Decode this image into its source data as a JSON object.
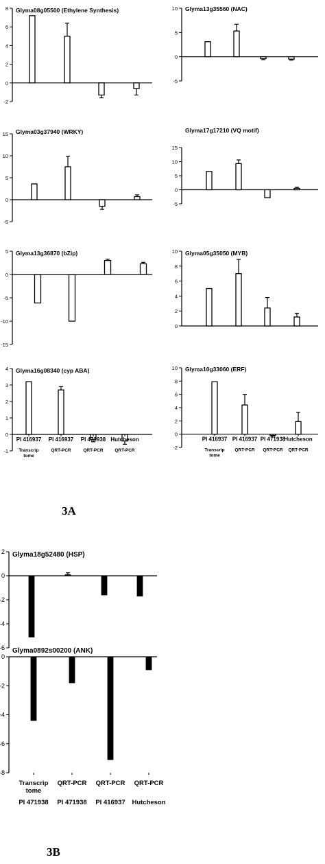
{
  "figure_labels": {
    "a": "3A",
    "b": "3B"
  },
  "chart_data": [
    {
      "type": "bar",
      "title": "Glyma08g05500 (Ethylene Synthesis)",
      "ylim": [
        -2,
        8
      ],
      "yticks": [
        -2,
        0,
        2,
        4,
        6,
        8
      ],
      "series": [
        {
          "style": "open",
          "values": [
            7.2,
            5.0,
            -1.3,
            -0.6
          ],
          "errors": [
            0,
            1.4,
            0.3,
            0.7
          ]
        }
      ]
    },
    {
      "type": "bar",
      "title": "Glyma13g35560 (NAC)",
      "ylim": [
        -5,
        10
      ],
      "yticks": [
        -5,
        0,
        5,
        10
      ],
      "series": [
        {
          "style": "open",
          "values": [
            3.1,
            5.3,
            -0.4,
            -0.5
          ],
          "errors": [
            0,
            1.4,
            0.2,
            0.2
          ]
        }
      ]
    },
    {
      "type": "bar",
      "title": "Glyma03g37940 (WRKY)",
      "ylim": [
        -5,
        15
      ],
      "yticks": [
        -5,
        0,
        5,
        10,
        15
      ],
      "series": [
        {
          "style": "open",
          "values": [
            3.6,
            7.5,
            -1.5,
            0.7
          ],
          "errors": [
            0,
            2.4,
            0.7,
            0.4
          ]
        }
      ]
    },
    {
      "type": "bar",
      "title": "Glyma17g17210 (VQ motif)",
      "ylim": [
        -5,
        15
      ],
      "yticks": [
        -5,
        0,
        5,
        10,
        15
      ],
      "series": [
        {
          "style": "open",
          "values": [
            6.5,
            9.3,
            -2.8,
            0.5
          ],
          "errors": [
            0,
            1.3,
            0,
            0.4
          ]
        }
      ]
    },
    {
      "type": "bar",
      "title": "Glyma13g36870 (bZip)",
      "ylim": [
        -15,
        5
      ],
      "yticks": [
        -15,
        -10,
        -5,
        0,
        5
      ],
      "series": [
        {
          "style": "open",
          "values": [
            -6.1,
            -10.0,
            3.0,
            2.3
          ],
          "errors": [
            0,
            0,
            0.3,
            0.3
          ]
        }
      ]
    },
    {
      "type": "bar",
      "title": "Glyma05g35050 (MYB)",
      "ylim": [
        0,
        10
      ],
      "yticks": [
        0,
        2,
        4,
        6,
        8,
        10
      ],
      "series": [
        {
          "style": "open",
          "values": [
            5.0,
            7.0,
            2.4,
            1.2
          ],
          "errors": [
            0,
            1.9,
            1.4,
            0.5
          ]
        }
      ]
    },
    {
      "type": "bar",
      "title": "Glyma16g08340 (cyp ABA)",
      "ylim": [
        -1,
        4
      ],
      "yticks": [
        -1,
        0,
        1,
        2,
        3,
        4
      ],
      "series": [
        {
          "style": "open",
          "values": [
            3.2,
            2.7,
            -0.3,
            -0.4
          ],
          "errors": [
            0,
            0.2,
            0.15,
            0.2
          ]
        }
      ],
      "categories": [
        "PI 416937",
        "PI 416937",
        "PI 471938",
        "Hutcheson"
      ],
      "subcategories": [
        "Transcrip tome",
        "QRT-PCR",
        "QRT-PCR",
        "QRT-PCR"
      ]
    },
    {
      "type": "bar",
      "title": "Glyma10g33060 (ERF)",
      "ylim": [
        -2,
        10
      ],
      "yticks": [
        -2,
        0,
        2,
        4,
        6,
        8,
        10
      ],
      "series": [
        {
          "style": "open",
          "values": [
            7.9,
            4.4,
            -0.2,
            1.9
          ],
          "errors": [
            0,
            1.6,
            0.1,
            1.4
          ]
        }
      ],
      "categories": [
        "PI 416937",
        "PI 416937",
        "PI 471938",
        "Hutcheson"
      ],
      "subcategories": [
        "Transcrip tome",
        "QRT-PCR",
        "QRT-PCR",
        "QRT-PCR"
      ]
    },
    {
      "type": "bar",
      "title": "Glyma18g52480 (HSP)",
      "ylim": [
        -6,
        2
      ],
      "yticks": [
        -6,
        -4,
        -2,
        0,
        2
      ],
      "series": [
        {
          "style": "filled",
          "values": [
            -5.1,
            0.1,
            -1.6,
            -1.7
          ],
          "errors": [
            0,
            0.15,
            0,
            0
          ]
        }
      ]
    },
    {
      "type": "bar",
      "title": "Glyma0892s00200 (ANK)",
      "ylim": [
        -8,
        0
      ],
      "yticks": [
        -8,
        -6,
        -4,
        -2,
        0
      ],
      "series": [
        {
          "style": "filled",
          "values": [
            -4.4,
            -1.8,
            -7.1,
            -0.9
          ],
          "errors": [
            0,
            0,
            0,
            0
          ]
        }
      ],
      "categories": [
        "PI 471938",
        "PI 471938",
        "PI 416937",
        "Hutcheson"
      ],
      "subcategories": [
        "Transcrip tome",
        "QRT-PCR",
        "QRT-PCR",
        "QRT-PCR"
      ]
    }
  ]
}
